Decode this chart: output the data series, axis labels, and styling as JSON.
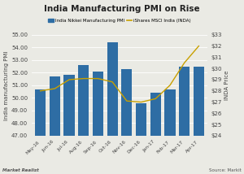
{
  "title": "India Manufacturing PMI on Rise",
  "categories": [
    "May-16",
    "Jun-16",
    "Jul-16",
    "Aug-16",
    "Sep-16",
    "Oct-16",
    "Nov-16",
    "Dec-16",
    "Jan-17",
    "Feb-17",
    "Mar-17",
    "Apr-17"
  ],
  "pmi_values": [
    50.7,
    51.7,
    51.8,
    52.6,
    52.1,
    54.4,
    52.3,
    49.6,
    50.4,
    50.7,
    52.5,
    52.5
  ],
  "inda_values": [
    28.0,
    28.2,
    29.0,
    29.1,
    29.1,
    28.8,
    27.1,
    27.0,
    27.3,
    28.5,
    30.5,
    32.0
  ],
  "bar_color": "#2E6DA4",
  "line_color": "#C8A000",
  "ylabel_left": "India manufacturing PMI",
  "ylabel_right": "INDA Price",
  "ylim_left": [
    47.0,
    55.0
  ],
  "ylim_right": [
    24.0,
    33.0
  ],
  "yticks_left": [
    47.0,
    48.0,
    49.0,
    50.0,
    51.0,
    52.0,
    53.0,
    54.0,
    55.0
  ],
  "yticks_right": [
    24,
    25,
    26,
    27,
    28,
    29,
    30,
    31,
    32,
    33
  ],
  "legend_label_bar": "India Nikkei Manufacturing PMI",
  "legend_label_line": "iShares MSCI India (INDA)",
  "background_color": "#eaeae4",
  "grid_color": "#ffffff",
  "watermark_left": "Market Realist",
  "watermark_right": "Source: Markit",
  "title_fontsize": 7.5,
  "legend_fontsize": 4.0,
  "tick_fontsize": 5.0,
  "ylabel_fontsize": 5.0
}
